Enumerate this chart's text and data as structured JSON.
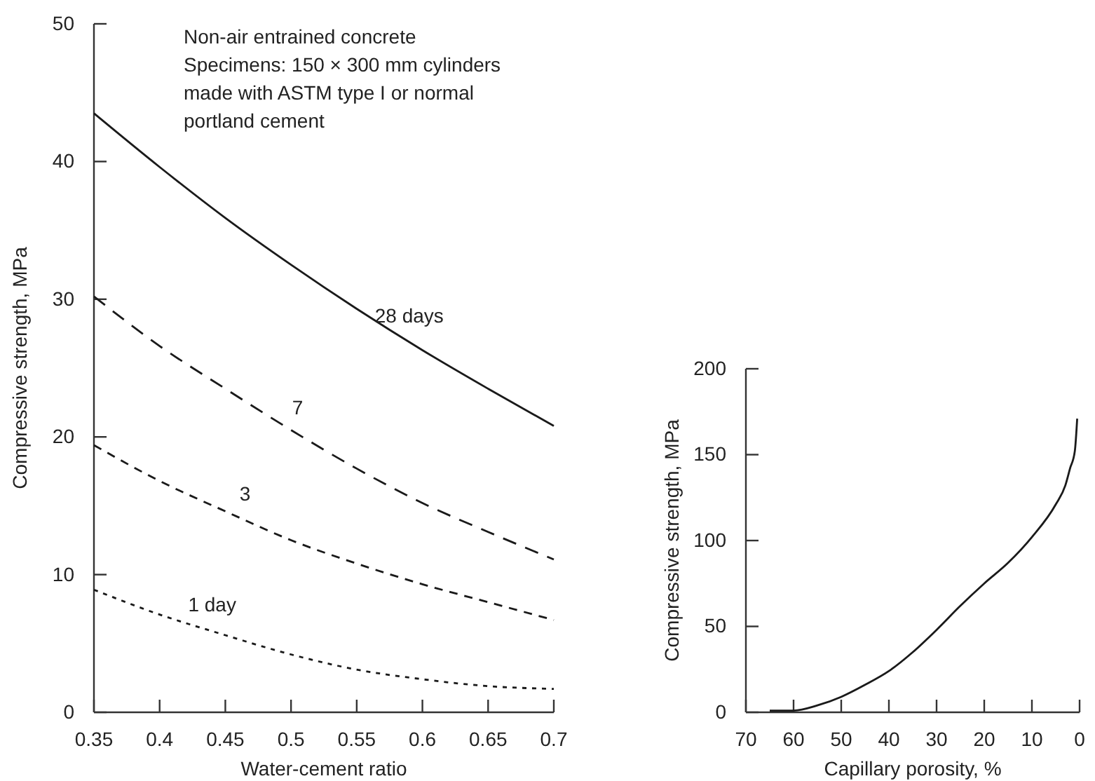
{
  "chart_data": [
    {
      "type": "line",
      "xlabel": "Water-cement ratio",
      "ylabel": "Compressive strength, MPa",
      "x": [
        0.35,
        0.4,
        0.45,
        0.5,
        0.55,
        0.6,
        0.65,
        0.7
      ],
      "xlim": [
        0.35,
        0.7
      ],
      "xticks": [
        0.35,
        0.4,
        0.45,
        0.5,
        0.55,
        0.6,
        0.65,
        0.7
      ],
      "ylim": [
        0,
        50
      ],
      "yticks": [
        0,
        10,
        20,
        30,
        40,
        50
      ],
      "grid": false,
      "marker": "none",
      "series": [
        {
          "name": "28 days",
          "color": "#1a1a1a",
          "line_style": "solid",
          "values": [
            43.5,
            39.6,
            35.9,
            32.5,
            29.3,
            26.3,
            23.5,
            20.8
          ]
        },
        {
          "name": "7",
          "color": "#1a1a1a",
          "line_style": "dashed",
          "values": [
            30.2,
            26.6,
            23.5,
            20.5,
            17.7,
            15.2,
            13.1,
            11.1
          ]
        },
        {
          "name": "3",
          "color": "#1a1a1a",
          "line_style": "dashed",
          "values": [
            19.4,
            16.8,
            14.6,
            12.5,
            10.8,
            9.3,
            8.0,
            6.7
          ]
        },
        {
          "name": "1 day",
          "color": "#1a1a1a",
          "line_style": "dotted",
          "values": [
            8.9,
            7.1,
            5.6,
            4.2,
            3.1,
            2.4,
            1.9,
            1.7
          ]
        }
      ],
      "annotations": [
        "Non-air entrained concrete\nSpecimens: 150 × 300 mm cylinders\nmade with ASTM type I or normal\nportland cement"
      ]
    },
    {
      "type": "line",
      "xlabel": "Capillary porosity, %",
      "ylabel": "Compressive strength, MPa",
      "xlim": [
        70,
        0
      ],
      "xticks": [
        70,
        60,
        50,
        40,
        30,
        20,
        10,
        0
      ],
      "ylim": [
        0,
        200
      ],
      "yticks": [
        0,
        50,
        100,
        150,
        200
      ],
      "grid": false,
      "marker": "none",
      "series": [
        {
          "color": "#1a1a1a",
          "line_style": "solid",
          "x": [
            65,
            60,
            55,
            50,
            45,
            40,
            35,
            30,
            25,
            20,
            15,
            10,
            5,
            3,
            2,
            1,
            0.5
          ],
          "values": [
            1,
            1,
            4,
            9,
            16,
            24,
            35,
            48,
            62,
            75,
            87,
            102,
            121,
            132,
            142,
            152,
            171
          ]
        }
      ]
    }
  ]
}
